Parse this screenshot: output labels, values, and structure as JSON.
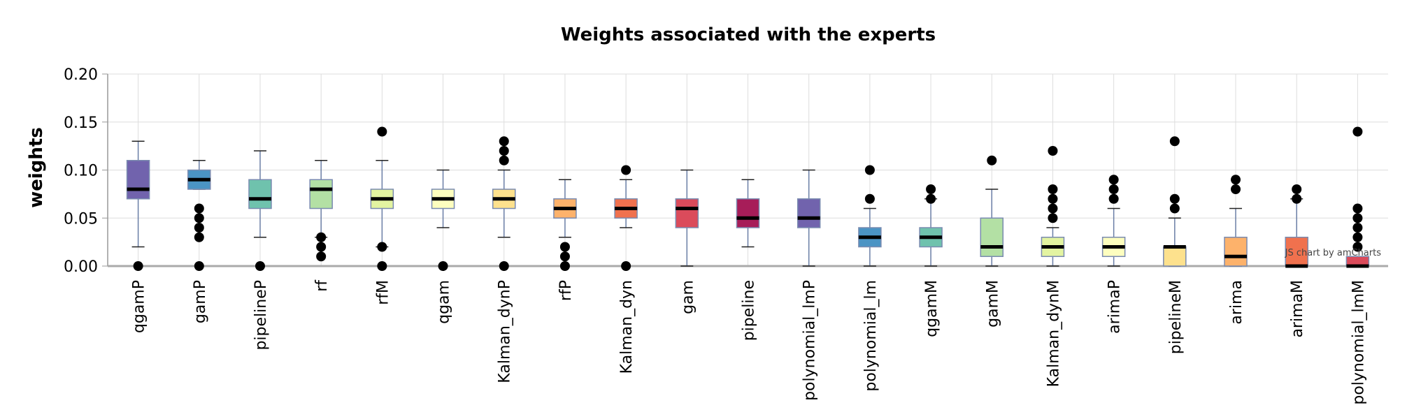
{
  "credit": "JS chart by amCharts",
  "chart_data": {
    "type": "boxplot",
    "title": "Weights associated with the experts",
    "ylabel": "weights",
    "xlabel": "",
    "ylim": [
      0,
      0.2
    ],
    "yticks": [
      "0.00",
      "0.05",
      "0.10",
      "0.15",
      "0.20"
    ],
    "grid": true,
    "categories": [
      "qgamP",
      "gamP",
      "pipelineP",
      "rf",
      "rfM",
      "qgam",
      "Kalman_dynP",
      "rfP",
      "Kalman_dyn",
      "gam",
      "pipeline",
      "polynomial_lmP",
      "polynomial_lm",
      "qgamM",
      "gamM",
      "Kalman_dynM",
      "arimaP",
      "pipelineM",
      "arima",
      "arimaM",
      "polynomial_lmM"
    ],
    "colors": [
      "#7163ad",
      "#4b94c4",
      "#6fc2ad",
      "#b3e0a4",
      "#e3f4a1",
      "#fdfebf",
      "#fde18d",
      "#fdb26b",
      "#f0714e",
      "#db4b5b",
      "#a71d59",
      "#7163ad",
      "#4b94c4",
      "#6fc2ad",
      "#b3e0a4",
      "#e3f4a1",
      "#fdfebf",
      "#fde18d",
      "#fdb26b",
      "#f0714e",
      "#db4b5b"
    ],
    "boxes": [
      {
        "whisker_low": 0.02,
        "q1": 0.07,
        "median": 0.08,
        "q3": 0.11,
        "whisker_high": 0.13,
        "outliers": [
          0
        ]
      },
      {
        "whisker_low": 0.08,
        "q1": 0.08,
        "median": 0.09,
        "q3": 0.1,
        "whisker_high": 0.11,
        "outliers": [
          0.06,
          0.05,
          0.04,
          0.03,
          0
        ]
      },
      {
        "whisker_low": 0.03,
        "q1": 0.06,
        "median": 0.07,
        "q3": 0.09,
        "whisker_high": 0.12,
        "outliers": [
          0
        ]
      },
      {
        "whisker_low": 0.03,
        "q1": 0.06,
        "median": 0.08,
        "q3": 0.09,
        "whisker_high": 0.11,
        "outliers": [
          0.03,
          0.02,
          0.01
        ]
      },
      {
        "whisker_low": 0.02,
        "q1": 0.06,
        "median": 0.07,
        "q3": 0.08,
        "whisker_high": 0.11,
        "outliers": [
          0.14,
          0.02,
          0
        ]
      },
      {
        "whisker_low": 0.04,
        "q1": 0.06,
        "median": 0.07,
        "q3": 0.08,
        "whisker_high": 0.1,
        "outliers": [
          0
        ]
      },
      {
        "whisker_low": 0.03,
        "q1": 0.06,
        "median": 0.07,
        "q3": 0.08,
        "whisker_high": 0.1,
        "outliers": [
          0.13,
          0.12,
          0.11,
          0
        ]
      },
      {
        "whisker_low": 0.03,
        "q1": 0.05,
        "median": 0.06,
        "q3": 0.07,
        "whisker_high": 0.09,
        "outliers": [
          0.02,
          0.01,
          0
        ]
      },
      {
        "whisker_low": 0.04,
        "q1": 0.05,
        "median": 0.06,
        "q3": 0.07,
        "whisker_high": 0.09,
        "outliers": [
          0.1,
          0
        ]
      },
      {
        "whisker_low": 0,
        "q1": 0.04,
        "median": 0.06,
        "q3": 0.07,
        "whisker_high": 0.1,
        "outliers": []
      },
      {
        "whisker_low": 0.02,
        "q1": 0.04,
        "median": 0.05,
        "q3": 0.07,
        "whisker_high": 0.09,
        "outliers": []
      },
      {
        "whisker_low": 0,
        "q1": 0.04,
        "median": 0.05,
        "q3": 0.07,
        "whisker_high": 0.1,
        "outliers": []
      },
      {
        "whisker_low": 0,
        "q1": 0.02,
        "median": 0.03,
        "q3": 0.04,
        "whisker_high": 0.06,
        "outliers": [
          0.1,
          0.07
        ]
      },
      {
        "whisker_low": 0,
        "q1": 0.02,
        "median": 0.03,
        "q3": 0.04,
        "whisker_high": 0.07,
        "outliers": [
          0.08,
          0.07
        ]
      },
      {
        "whisker_low": 0,
        "q1": 0.01,
        "median": 0.02,
        "q3": 0.05,
        "whisker_high": 0.08,
        "outliers": [
          0.11
        ]
      },
      {
        "whisker_low": 0,
        "q1": 0.01,
        "median": 0.02,
        "q3": 0.03,
        "whisker_high": 0.04,
        "outliers": [
          0.12,
          0.08,
          0.07,
          0.06,
          0.05
        ]
      },
      {
        "whisker_low": 0,
        "q1": 0.01,
        "median": 0.02,
        "q3": 0.03,
        "whisker_high": 0.06,
        "outliers": [
          0.09,
          0.08,
          0.07
        ]
      },
      {
        "whisker_low": 0,
        "q1": 0,
        "median": 0.02,
        "q3": 0.02,
        "whisker_high": 0.05,
        "outliers": [
          0.13,
          0.07,
          0.06
        ]
      },
      {
        "whisker_low": 0,
        "q1": 0,
        "median": 0.01,
        "q3": 0.03,
        "whisker_high": 0.06,
        "outliers": [
          0.09,
          0.08
        ]
      },
      {
        "whisker_low": 0,
        "q1": 0,
        "median": 0,
        "q3": 0.03,
        "whisker_high": 0.07,
        "outliers": [
          0.08,
          0.07
        ]
      },
      {
        "whisker_low": 0,
        "q1": 0,
        "median": 0,
        "q3": 0.01,
        "whisker_high": 0.01,
        "outliers": [
          0.14,
          0.06,
          0.05,
          0.04,
          0.03,
          0.02
        ]
      }
    ]
  }
}
